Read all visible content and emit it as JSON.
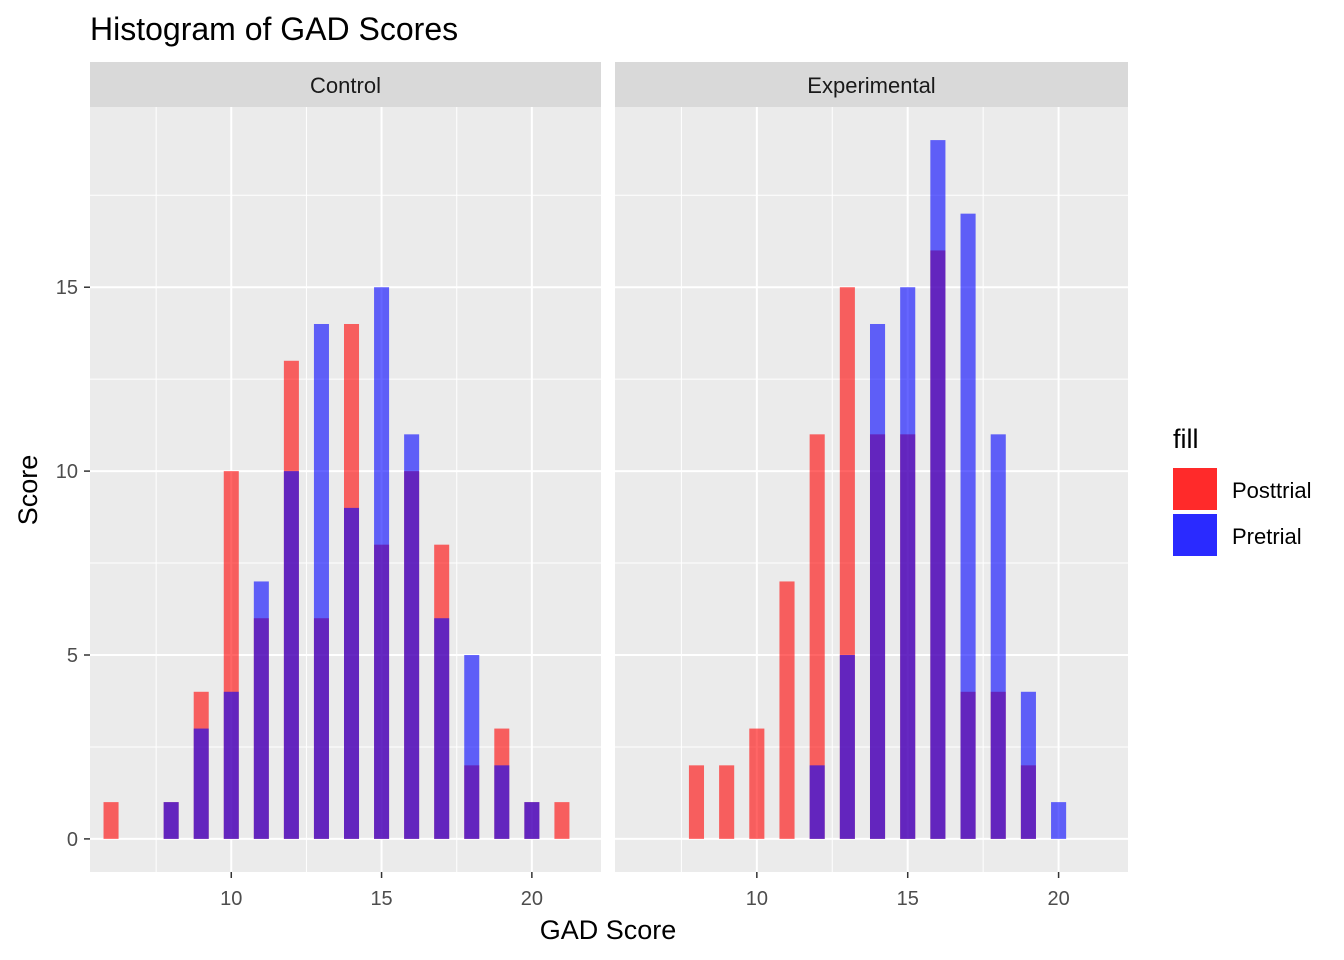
{
  "chart_data": {
    "type": "bar",
    "title": "Histogram of GAD Scores",
    "xlabel": "GAD Score",
    "ylabel": "Score",
    "xlim": [
      5.3,
      22.3
    ],
    "ylim": [
      -0.9,
      19.9
    ],
    "x_ticks": [
      10,
      15,
      20
    ],
    "x_tick_labels": [
      "10",
      "15",
      "20"
    ],
    "y_ticks": [
      0,
      5,
      10,
      15
    ],
    "y_tick_labels": [
      "0",
      "5",
      "10",
      "15"
    ],
    "bar_width": 0.5,
    "bar_opacity": 0.6,
    "grid": true,
    "legend": {
      "title": "fill",
      "position": "right",
      "entries": [
        {
          "label": "Posttrial",
          "color": "#ff2a2a"
        },
        {
          "label": "Pretrial",
          "color": "#2a2aff"
        }
      ]
    },
    "panels": [
      {
        "name": "Control",
        "series": [
          {
            "name": "Posttrial",
            "color": "#ff0000",
            "x": [
              6,
              8,
              9,
              10,
              11,
              12,
              13,
              14,
              15,
              16,
              17,
              18,
              19,
              20,
              21
            ],
            "values": [
              1,
              1,
              4,
              10,
              6,
              13,
              6,
              14,
              8,
              10,
              8,
              2,
              3,
              1,
              1
            ]
          },
          {
            "name": "Pretrial",
            "color": "#0000ff",
            "x": [
              8,
              9,
              10,
              11,
              12,
              13,
              14,
              15,
              16,
              17,
              18,
              19,
              20
            ],
            "values": [
              1,
              3,
              4,
              7,
              10,
              14,
              9,
              15,
              11,
              6,
              5,
              2,
              1
            ]
          }
        ]
      },
      {
        "name": "Experimental",
        "series": [
          {
            "name": "Posttrial",
            "color": "#ff0000",
            "x": [
              8,
              9,
              10,
              11,
              12,
              13,
              14,
              15,
              16,
              17,
              18,
              19
            ],
            "values": [
              2,
              2,
              3,
              7,
              11,
              15,
              11,
              11,
              16,
              4,
              4,
              2
            ]
          },
          {
            "name": "Pretrial",
            "color": "#0000ff",
            "x": [
              12,
              13,
              14,
              15,
              16,
              17,
              18,
              19,
              20
            ],
            "values": [
              2,
              5,
              14,
              15,
              19,
              17,
              11,
              4,
              1
            ]
          }
        ]
      }
    ]
  }
}
